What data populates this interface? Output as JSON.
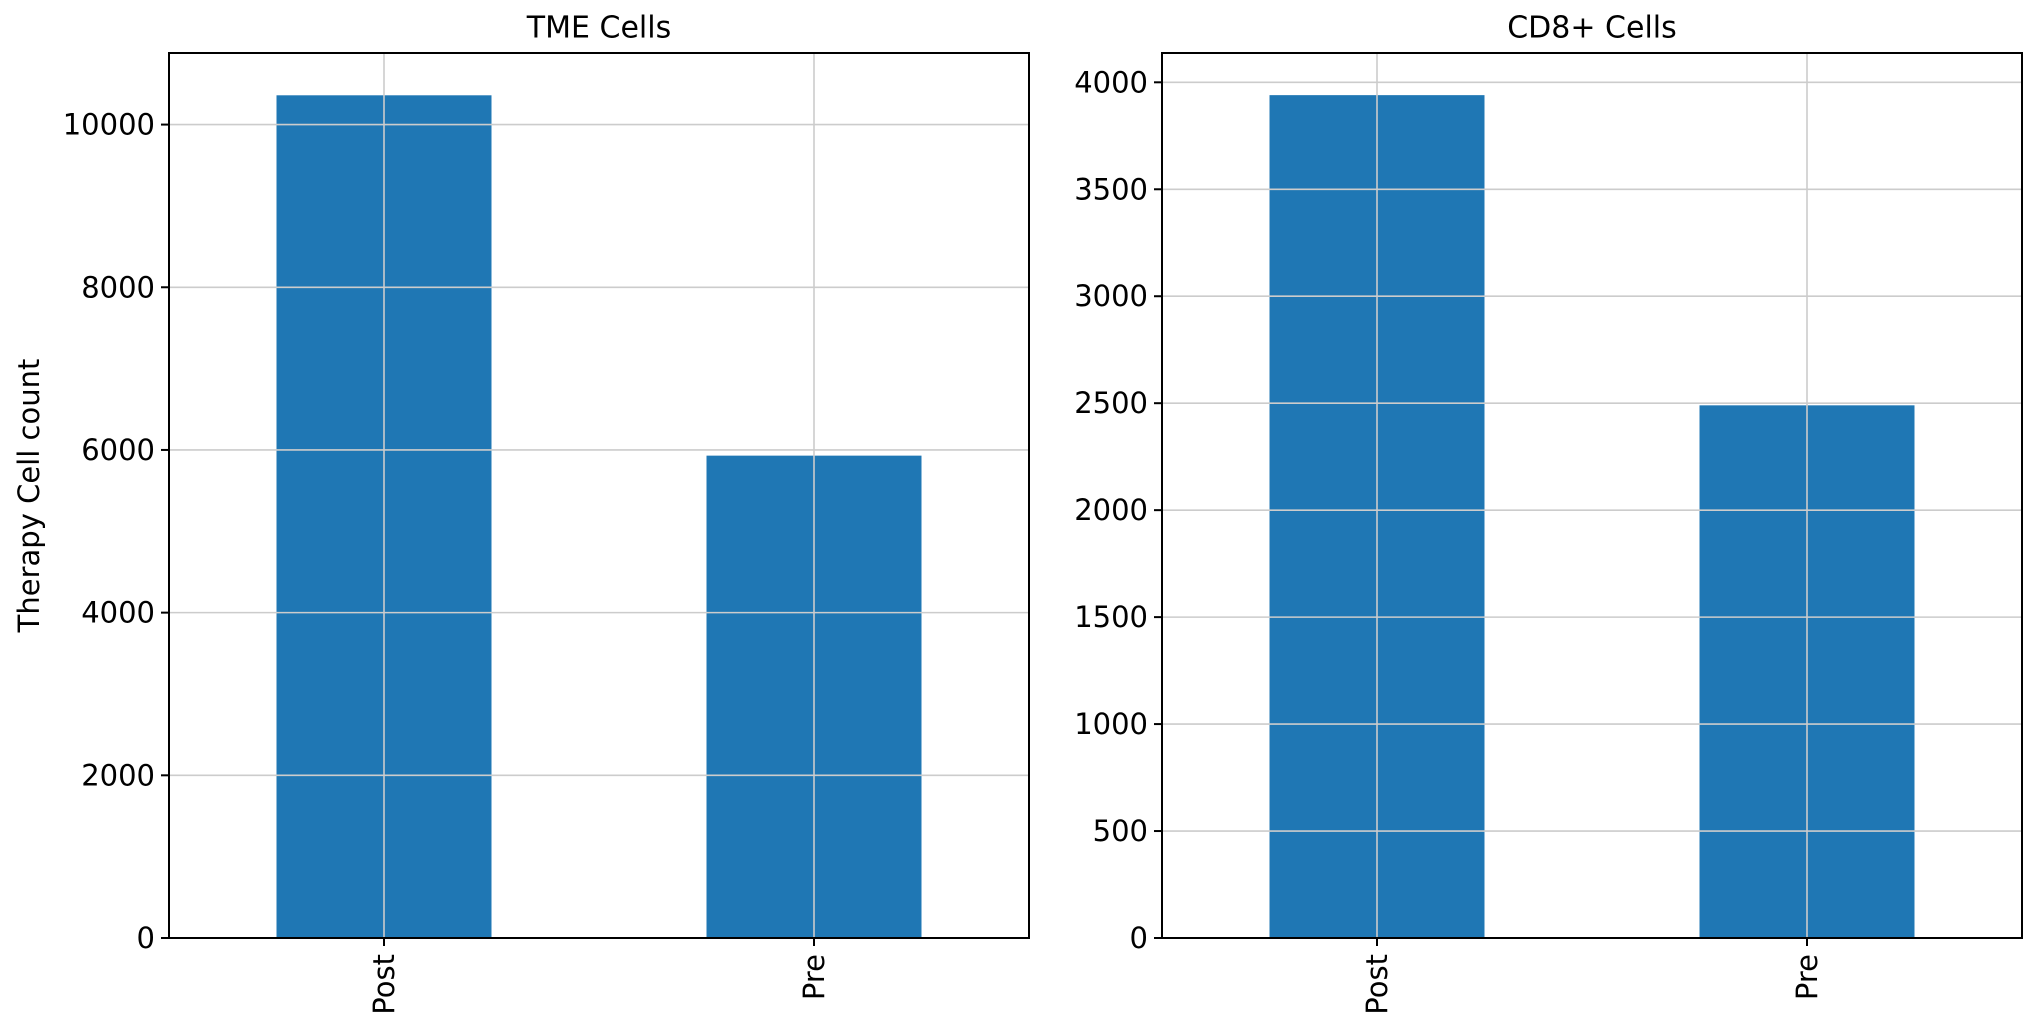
{
  "chart_data": [
    {
      "type": "bar",
      "title": "TME Cells",
      "categories": [
        "Post",
        "Pre"
      ],
      "values": [
        10360,
        5930
      ],
      "ylabel": "Therapy Cell count",
      "xlabel": "",
      "ylim": [
        0,
        10880
      ],
      "yticks": [
        0,
        2000,
        4000,
        6000,
        8000,
        10000
      ],
      "grid": true,
      "bar_color": "#1f77b4"
    },
    {
      "type": "bar",
      "title": "CD8+ Cells",
      "categories": [
        "Post",
        "Pre"
      ],
      "values": [
        3940,
        2490
      ],
      "ylabel": "",
      "xlabel": "",
      "ylim": [
        0,
        4137
      ],
      "yticks": [
        0,
        500,
        1000,
        1500,
        2000,
        2500,
        3000,
        3500,
        4000
      ],
      "grid": true,
      "bar_color": "#1f77b4"
    }
  ]
}
